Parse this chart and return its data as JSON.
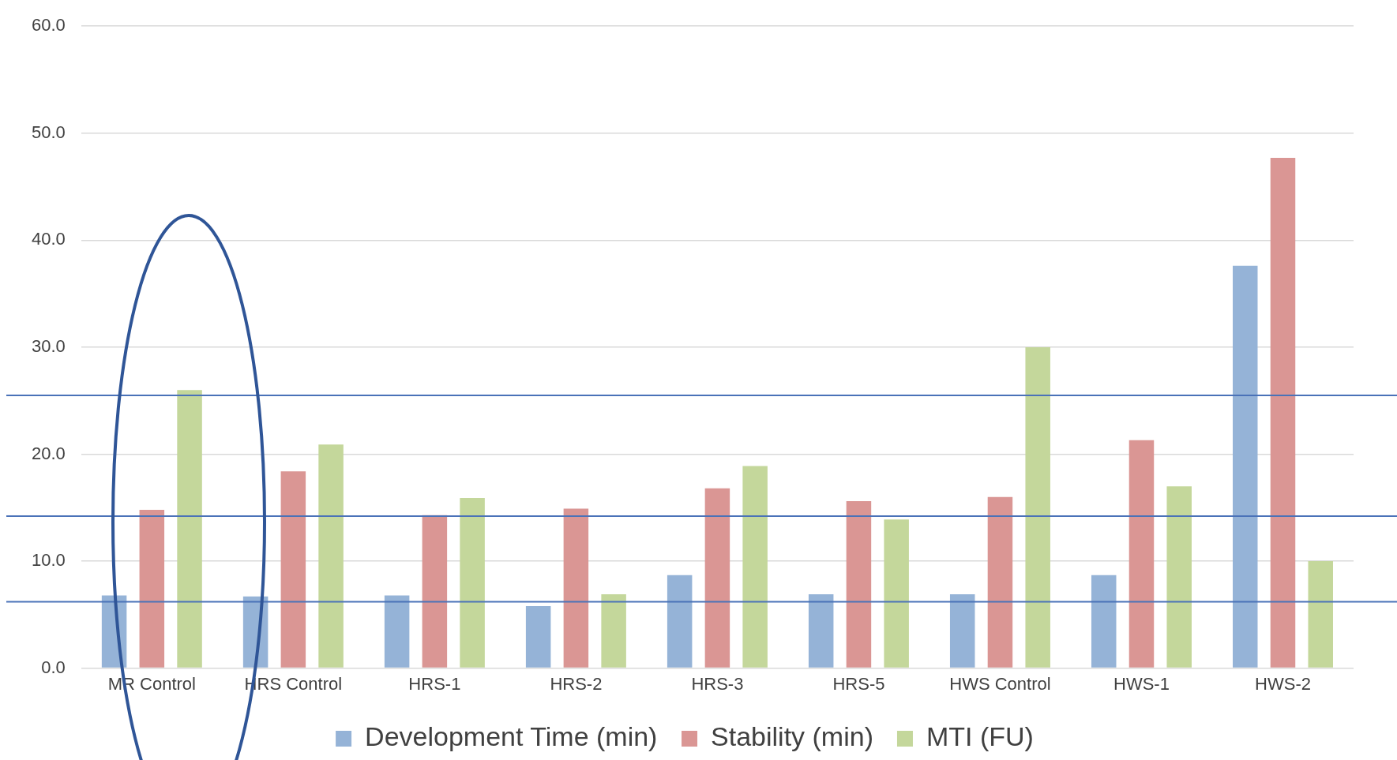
{
  "chart_data": {
    "type": "bar",
    "categories": [
      "MR Control",
      "HRS Control",
      "HRS-1",
      "HRS-2",
      "HRS-3",
      "HRS-5",
      "HWS Control",
      "HWS-1",
      "HWS-2"
    ],
    "series": [
      {
        "name": "Development Time (min)",
        "color": "#95b3d7",
        "values": [
          6.8,
          6.7,
          6.8,
          5.8,
          8.7,
          6.9,
          6.9,
          8.7,
          37.6
        ]
      },
      {
        "name": "Stability (min)",
        "color": "#da9694",
        "values": [
          14.8,
          18.4,
          14.3,
          14.9,
          16.8,
          15.6,
          16.0,
          21.3,
          47.7
        ]
      },
      {
        "name": "MTI (FU)",
        "color": "#c4d79b",
        "values": [
          26.0,
          20.9,
          15.9,
          6.9,
          18.9,
          13.9,
          30.0,
          17.0,
          10.0
        ]
      }
    ],
    "ylim": [
      0,
      60
    ],
    "yticks": [
      {
        "value": 0,
        "label": "0.0"
      },
      {
        "value": 10,
        "label": "10.0"
      },
      {
        "value": 20,
        "label": "20.0"
      },
      {
        "value": 30,
        "label": "30.0"
      },
      {
        "value": 40,
        "label": "40.0"
      },
      {
        "value": 50,
        "label": "50.0"
      },
      {
        "value": 60,
        "label": "60.0"
      }
    ],
    "grid": "y",
    "legend": "bottom",
    "ref_lines": [
      {
        "axis": "y",
        "value": 25.5,
        "color": "#4a72b8"
      },
      {
        "axis": "y",
        "value": 14.2,
        "color": "#4a72b8"
      },
      {
        "axis": "y",
        "value": 6.2,
        "color": "#4a72b8"
      }
    ]
  }
}
